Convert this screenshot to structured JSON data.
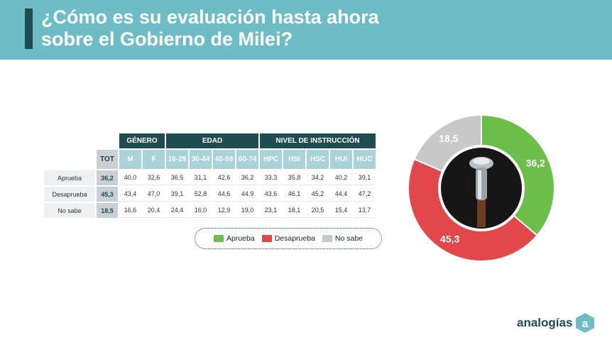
{
  "header": {
    "title_line1": "¿Cómo es su evaluación hasta ahora",
    "title_line2": "sobre el Gobierno de Milei?"
  },
  "table": {
    "groups": [
      "GÉNERO",
      "EDAD",
      "NIVEL DE INSTRUCCIÓN"
    ],
    "columns": [
      "TOT",
      "M",
      "F",
      "16-29",
      "30-44",
      "45-59",
      "60-74",
      "HPC",
      "HSI",
      "HSC",
      "HUI",
      "HUC"
    ],
    "rows": [
      {
        "label": "Aprueba",
        "values": [
          "36,2",
          "40,0",
          "32,6",
          "36,5",
          "31,1",
          "42,6",
          "36,2",
          "33,3",
          "35,8",
          "34,2",
          "40,2",
          "39,1"
        ]
      },
      {
        "label": "Desaprueba",
        "values": [
          "45,3",
          "43,4",
          "47,0",
          "39,1",
          "52,8",
          "44,6",
          "44,9",
          "43,6",
          "46,1",
          "45,2",
          "44,4",
          "47,2"
        ]
      },
      {
        "label": "No sabe",
        "values": [
          "18,5",
          "16,6",
          "20,4",
          "24,4",
          "16,0",
          "12,9",
          "19,0",
          "23,1",
          "18,1",
          "20,5",
          "15,4",
          "13,7"
        ]
      }
    ]
  },
  "legend": {
    "aprueba": "Aprueba",
    "desaprueba": "Desaprueba",
    "no_sabe": "No sabe"
  },
  "colors": {
    "aprueba": "#6cbf4b",
    "desaprueba": "#e2474a",
    "no_sabe": "#c8c8c8",
    "header": "#6dbcc6",
    "dark": "#1e4c50"
  },
  "chart_data": {
    "type": "pie",
    "slices": [
      {
        "label": "Aprueba",
        "value": 36.2,
        "display": "36,2",
        "color": "#6cbf4b"
      },
      {
        "label": "Desaprueba",
        "value": 45.3,
        "display": "45,3",
        "color": "#e2474a"
      },
      {
        "label": "No sabe",
        "value": 18.5,
        "display": "18,5",
        "color": "#c8c8c8"
      }
    ],
    "start": "top",
    "direction": "clockwise",
    "legend_position": "bottom-left"
  },
  "logo": {
    "word": "analogías",
    "mark": "a"
  }
}
